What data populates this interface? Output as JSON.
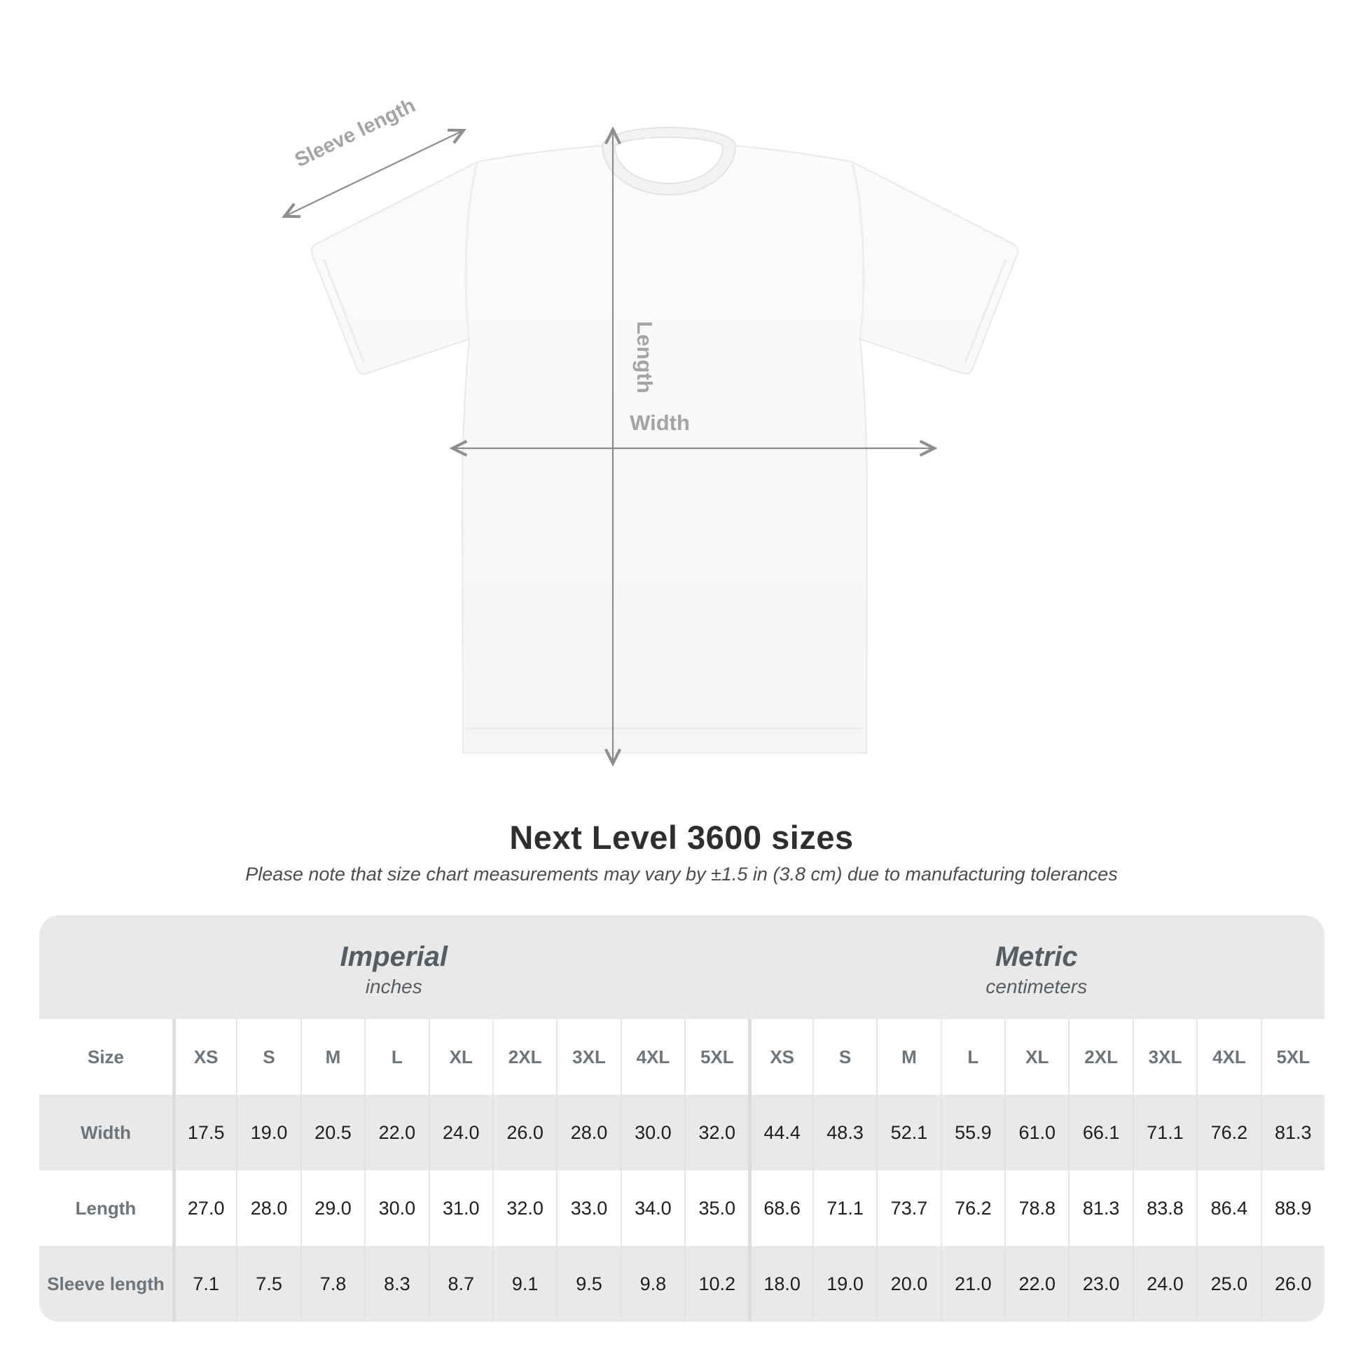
{
  "diagram": {
    "labels": {
      "sleeve": "Sleeve length",
      "length": "Length",
      "width": "Width"
    }
  },
  "heading": {
    "title": "Next Level 3600 sizes",
    "subtitle": "Please note that size chart measurements may vary by ±1.5 in (3.8 cm) due to manufacturing tolerances"
  },
  "table": {
    "groups": [
      {
        "label": "Imperial",
        "sublabel": "inches"
      },
      {
        "label": "Metric",
        "sublabel": "centimeters"
      }
    ],
    "size_row_label": "Size",
    "columns": [
      "XS",
      "S",
      "M",
      "L",
      "XL",
      "2XL",
      "3XL",
      "4XL",
      "5XL",
      "XS",
      "S",
      "M",
      "L",
      "XL",
      "2XL",
      "3XL",
      "4XL",
      "5XL"
    ],
    "rows": [
      {
        "label": "Width",
        "values": [
          "17.5",
          "19.0",
          "20.5",
          "22.0",
          "24.0",
          "26.0",
          "28.0",
          "30.0",
          "32.0",
          "44.4",
          "48.3",
          "52.1",
          "55.9",
          "61.0",
          "66.1",
          "71.1",
          "76.2",
          "81.3"
        ]
      },
      {
        "label": "Length",
        "values": [
          "27.0",
          "28.0",
          "29.0",
          "30.0",
          "31.0",
          "32.0",
          "33.0",
          "34.0",
          "35.0",
          "68.6",
          "71.1",
          "73.7",
          "76.2",
          "78.8",
          "81.3",
          "83.8",
          "86.4",
          "88.9"
        ]
      },
      {
        "label": "Sleeve length",
        "values": [
          "7.1",
          "7.5",
          "7.8",
          "8.3",
          "8.7",
          "9.1",
          "9.5",
          "9.8",
          "10.2",
          "18.0",
          "19.0",
          "20.0",
          "21.0",
          "22.0",
          "23.0",
          "24.0",
          "25.0",
          "26.0"
        ]
      }
    ]
  },
  "colors": {
    "card_background": "#e9e9e9",
    "header_text": "#6d747a",
    "value_text": "#1e1e1e",
    "group_heading_text": "#565d62",
    "diagram_line": "#8e8e8e",
    "diagram_label": "#a4a4a4",
    "title_text": "#2e2e2e"
  }
}
